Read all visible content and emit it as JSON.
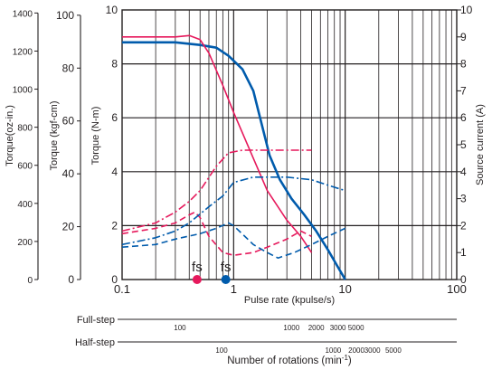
{
  "chart_data": {
    "type": "line",
    "x_scale": "log",
    "xlim": [
      0.1,
      100
    ],
    "x_ticks": [
      "0.1",
      "1",
      "10",
      "100"
    ],
    "xlabel": "Pulse rate (kpulse/s)",
    "left_axes": [
      {
        "label": "Torque(oz-in.)",
        "ticks": [
          "0",
          "200",
          "400",
          "600",
          "800",
          "1000",
          "1200",
          "1400"
        ],
        "tick_values": [
          0,
          200,
          400,
          600,
          800,
          1000,
          1200,
          1400
        ],
        "max": 1416
      },
      {
        "label": "Torque (kgf-cm)",
        "ticks": [
          "0",
          "20",
          "40",
          "60",
          "80",
          "100"
        ],
        "tick_values": [
          0,
          20,
          40,
          60,
          80,
          100
        ],
        "max": 102
      },
      {
        "label": "Torque (N-m)",
        "ticks": [
          "0",
          "2",
          "4",
          "6",
          "8",
          "10"
        ],
        "tick_values": [
          0,
          2,
          4,
          6,
          8,
          10
        ],
        "max": 10
      }
    ],
    "right_axis": {
      "label": "Source current (A)",
      "ticks": [
        "0",
        "1",
        "2",
        "3",
        "4",
        "5",
        "6",
        "7",
        "8",
        "9",
        "10"
      ],
      "tick_values": [
        0,
        1,
        2,
        3,
        4,
        5,
        6,
        7,
        8,
        9,
        10
      ],
      "max": 10
    },
    "grid": true,
    "fs_markers": [
      {
        "label": "fs",
        "x": 0.47,
        "color": "#e6195c"
      },
      {
        "label": "fs",
        "x": 0.85,
        "color": "#005bac"
      }
    ],
    "rotation_axes": [
      {
        "label": "Full-step",
        "ticks": [
          {
            "text": "100",
            "x": 0.33
          },
          {
            "text": "1000",
            "x": 3.3
          },
          {
            "text": "2000",
            "x": 5.5
          },
          {
            "text": "3000",
            "x": 8.6
          },
          {
            "text": "5000",
            "x": 12.5
          }
        ]
      },
      {
        "label": "Half-step",
        "ticks": [
          {
            "text": "100",
            "x": 0.78
          },
          {
            "text": "1000",
            "x": 7.8
          },
          {
            "text": "2000",
            "x": 12.6
          },
          {
            "text": "3000",
            "x": 17.5
          },
          {
            "text": "5000",
            "x": 27
          }
        ]
      }
    ],
    "bottom_label": "Number of rotations (min",
    "bottom_label_sup": "-1",
    "bottom_label_close": ")",
    "series": [
      {
        "axis": "torque",
        "color": "#005bac",
        "dash": "solid",
        "width": 2.6,
        "points": [
          [
            0.1,
            8.8
          ],
          [
            0.2,
            8.8
          ],
          [
            0.3,
            8.8
          ],
          [
            0.5,
            8.7
          ],
          [
            0.7,
            8.6
          ],
          [
            0.9,
            8.3
          ],
          [
            1.2,
            7.8
          ],
          [
            1.5,
            7.0
          ],
          [
            1.8,
            5.7
          ],
          [
            2.1,
            4.6
          ],
          [
            2.6,
            3.7
          ],
          [
            3.3,
            3.0
          ],
          [
            4.3,
            2.4
          ],
          [
            5.5,
            1.8
          ],
          [
            7.0,
            1.1
          ],
          [
            8.5,
            0.5
          ],
          [
            10,
            0
          ]
        ]
      },
      {
        "axis": "torque",
        "color": "#e6195c",
        "dash": "solid",
        "width": 1.6,
        "points": [
          [
            0.1,
            9.0
          ],
          [
            0.2,
            9.0
          ],
          [
            0.3,
            9.0
          ],
          [
            0.4,
            9.05
          ],
          [
            0.5,
            8.9
          ],
          [
            0.6,
            8.4
          ],
          [
            0.8,
            7.2
          ],
          [
            1.0,
            6.2
          ],
          [
            1.5,
            4.5
          ],
          [
            2.0,
            3.3
          ],
          [
            3.0,
            2.2
          ],
          [
            4.0,
            1.6
          ],
          [
            5.0,
            1.0
          ]
        ]
      },
      {
        "axis": "current",
        "color": "#e6195c",
        "dash": "dashdot",
        "width": 1.6,
        "points": [
          [
            0.1,
            1.8
          ],
          [
            0.2,
            2.1
          ],
          [
            0.3,
            2.5
          ],
          [
            0.4,
            2.9
          ],
          [
            0.5,
            3.3
          ],
          [
            0.7,
            4.2
          ],
          [
            0.9,
            4.7
          ],
          [
            1.2,
            4.8
          ],
          [
            2.0,
            4.8
          ],
          [
            3.0,
            4.8
          ],
          [
            5.0,
            4.8
          ]
        ]
      },
      {
        "axis": "current",
        "color": "#e6195c",
        "dash": "dashed",
        "width": 1.6,
        "points": [
          [
            0.1,
            1.7
          ],
          [
            0.2,
            1.9
          ],
          [
            0.3,
            2.1
          ],
          [
            0.4,
            2.4
          ],
          [
            0.45,
            2.5
          ],
          [
            0.5,
            2.3
          ],
          [
            0.6,
            1.6
          ],
          [
            0.8,
            1.0
          ],
          [
            1.0,
            0.9
          ],
          [
            1.5,
            1.0
          ],
          [
            2.0,
            1.2
          ],
          [
            3.0,
            1.5
          ],
          [
            4.0,
            1.8
          ],
          [
            5.0,
            1.6
          ]
        ]
      },
      {
        "axis": "current",
        "color": "#005bac",
        "dash": "dashdot",
        "width": 1.6,
        "points": [
          [
            0.1,
            1.3
          ],
          [
            0.2,
            1.55
          ],
          [
            0.3,
            1.8
          ],
          [
            0.4,
            2.1
          ],
          [
            0.6,
            2.7
          ],
          [
            0.8,
            3.1
          ],
          [
            1.0,
            3.6
          ],
          [
            1.5,
            3.8
          ],
          [
            2.0,
            3.8
          ],
          [
            3.0,
            3.8
          ],
          [
            5.0,
            3.7
          ],
          [
            7.0,
            3.5
          ],
          [
            10,
            3.3
          ]
        ]
      },
      {
        "axis": "current",
        "color": "#005bac",
        "dash": "dashed",
        "width": 1.6,
        "points": [
          [
            0.1,
            1.2
          ],
          [
            0.2,
            1.3
          ],
          [
            0.3,
            1.5
          ],
          [
            0.5,
            1.7
          ],
          [
            0.7,
            1.9
          ],
          [
            0.9,
            2.1
          ],
          [
            1.0,
            2.0
          ],
          [
            1.5,
            1.3
          ],
          [
            2.0,
            1.0
          ],
          [
            2.5,
            0.8
          ],
          [
            3.5,
            1.0
          ],
          [
            5.0,
            1.3
          ],
          [
            7.0,
            1.6
          ],
          [
            10,
            1.9
          ]
        ]
      }
    ]
  }
}
